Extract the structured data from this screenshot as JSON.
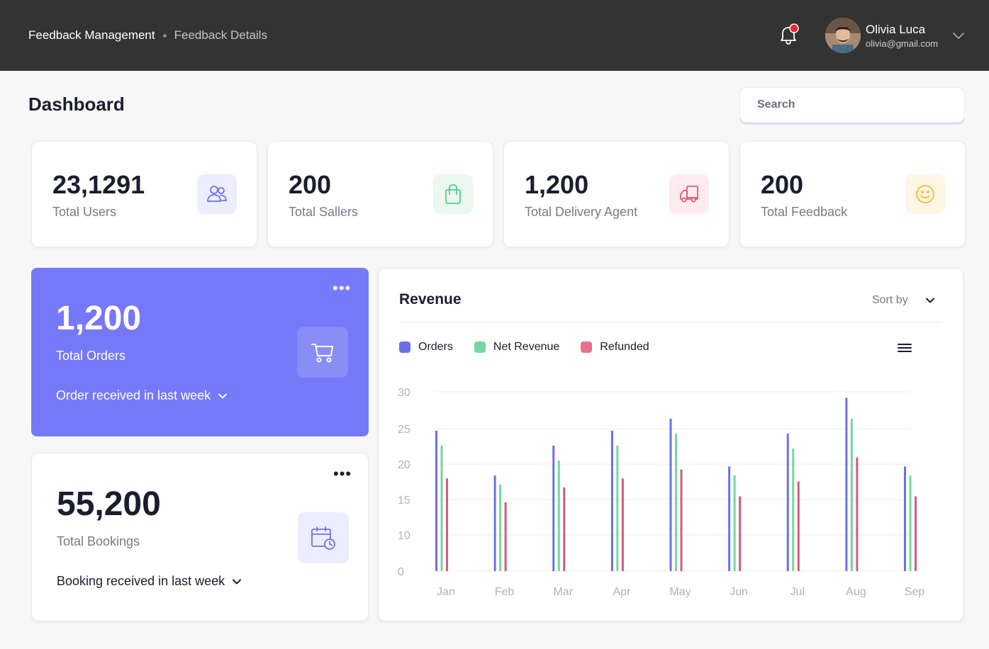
{
  "header": {
    "breadcrumb": [
      "Feedback Management",
      "Feedback Details"
    ],
    "user": {
      "name": "Olivia Luca",
      "email": "olivia@gmail.com"
    },
    "icons": {
      "notifications": "bell-icon",
      "account_menu": "chevron-down-icon"
    }
  },
  "page_title": "Dashboard",
  "search": {
    "placeholder": "Search",
    "value": ""
  },
  "stats": [
    {
      "value": "23,1291",
      "label": "Total Users",
      "icon": "users-icon",
      "color": "#6c70e8",
      "bg": "#eceefe"
    },
    {
      "value": "200",
      "label": "Total Sallers",
      "icon": "shopping-bag-icon",
      "color": "#56c98b",
      "bg": "#eaf8f0"
    },
    {
      "value": "1,200",
      "label": "Total Delivery Agent",
      "icon": "truck-icon",
      "color": "#e25875",
      "bg": "#fdebee"
    },
    {
      "value": "200",
      "label": "Total Feedback",
      "icon": "smiley-icon",
      "color": "#f5b82e",
      "bg": "#fef6e4"
    }
  ],
  "orders_card": {
    "value": "1,200",
    "label": "Total Orders",
    "filter": "Order received in last week",
    "icon": "cart-icon"
  },
  "bookings_card": {
    "value": "55,200",
    "label": "Total Bookings",
    "filter": "Booking received in last week",
    "icon": "calendar-clock-icon"
  },
  "revenue": {
    "title": "Revenue",
    "sort_label": "Sort by",
    "legend": [
      "Orders",
      "Net Revenue",
      "Refunded"
    ]
  },
  "chart_data": {
    "type": "bar",
    "categories": [
      "Jan",
      "Feb",
      "Mar",
      "Apr",
      "May",
      "Jun",
      "Jul",
      "Aug",
      "Sep"
    ],
    "series": [
      {
        "name": "Orders",
        "color": "#6c70e8",
        "values": [
          23.5,
          16,
          21,
          23.5,
          25.5,
          17.5,
          23,
          29,
          17.5
        ]
      },
      {
        "name": "Net Revenue",
        "color": "#74d6a0",
        "values": [
          21,
          14.5,
          18.5,
          21,
          23,
          16,
          20.5,
          25.5,
          16
        ]
      },
      {
        "name": "Refunded",
        "color": "#d9587a",
        "values": [
          15.5,
          11.5,
          14,
          15.5,
          17,
          12.5,
          15,
          19,
          12.5
        ]
      }
    ],
    "y_ticks": [
      "30",
      "25",
      "20",
      "15",
      "10",
      "0"
    ],
    "ylim": [
      0,
      30
    ],
    "grid": true,
    "legend_position": "top-left"
  }
}
